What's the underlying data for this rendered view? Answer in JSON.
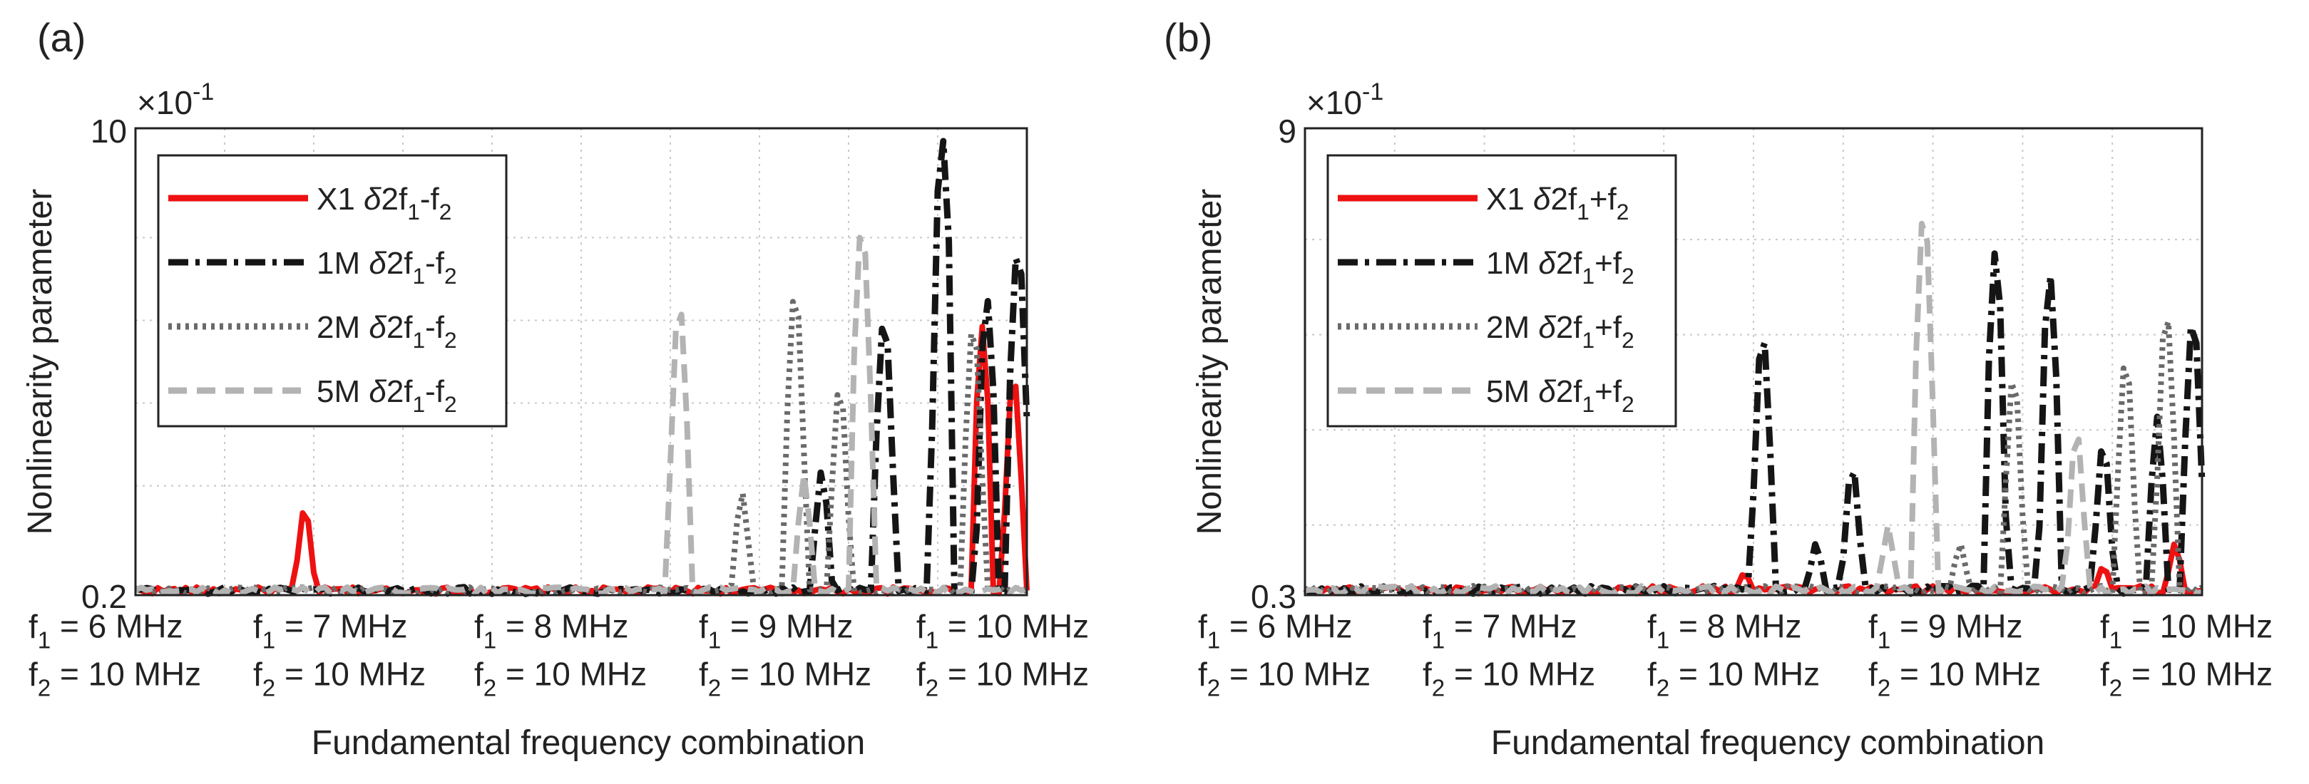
{
  "chart_data": [
    {
      "panel_label": "(a)",
      "type": "line",
      "title": "",
      "ylabel": "Nonlinearity parameter",
      "xlabel": "Fundamental frequency combination",
      "y_exponent_label": "×10",
      "y_exponent_power": "-1",
      "ytick_labels": [
        "10",
        "0.2"
      ],
      "ylim": [
        0.2,
        10
      ],
      "yscale": "log",
      "grid": true,
      "legend_position": "top-left",
      "x_groups": [
        {
          "f1": "= 6 MHz",
          "f2": "= 10 MHz"
        },
        {
          "f1": "= 7 MHz",
          "f2": "= 10 MHz"
        },
        {
          "f1": "= 8 MHz",
          "f2": "= 10 MHz"
        },
        {
          "f1": "= 9 MHz",
          "f2": "= 10 MHz"
        },
        {
          "f1": "= 10 MHz",
          "f2": "= 10 MHz"
        }
      ],
      "series": [
        {
          "name": "X1",
          "label_prefix": "X1",
          "delta": "δ",
          "term": "2f",
          "sub1": "1",
          "op": "-f",
          "sub2": "2",
          "color": "#ee1111",
          "dash": "",
          "peaks": [
            [
              0.19,
              0.45
            ],
            [
              0.95,
              1.9
            ],
            [
              0.985,
              1.4
            ]
          ]
        },
        {
          "name": "1M",
          "label_prefix": "1M",
          "delta": "δ",
          "term": "2f",
          "sub1": "1",
          "op": "-f",
          "sub2": "2",
          "color": "#151515",
          "dash": "28,10,6,10",
          "peaks": [
            [
              0.77,
              0.6
            ],
            [
              0.84,
              2.3
            ],
            [
              0.905,
              10
            ],
            [
              0.955,
              2.6
            ],
            [
              0.99,
              4.2
            ]
          ]
        },
        {
          "name": "2M",
          "label_prefix": "2M",
          "delta": "δ",
          "term": "2f",
          "sub1": "1",
          "op": "-f",
          "sub2": "2",
          "color": "#6a6a6a",
          "dash": "5,7",
          "peaks": [
            [
              0.68,
              0.5
            ],
            [
              0.74,
              2.9
            ],
            [
              0.79,
              1.3
            ],
            [
              0.94,
              2.2
            ]
          ]
        },
        {
          "name": "5M",
          "label_prefix": "5M",
          "delta": "δ",
          "term": "2f",
          "sub1": "1",
          "op": "-f",
          "sub2": "2",
          "color": "#b3b3b3",
          "dash": "26,14",
          "peaks": [
            [
              0.61,
              2.6
            ],
            [
              0.815,
              5.0
            ],
            [
              0.75,
              0.55
            ]
          ]
        }
      ]
    },
    {
      "panel_label": "(b)",
      "type": "line",
      "title": "",
      "ylabel": "Nonlinearity parameter",
      "xlabel": "Fundamental frequency combination",
      "y_exponent_label": "×10",
      "y_exponent_power": "-1",
      "ytick_labels": [
        "9",
        "0.3"
      ],
      "ylim": [
        0.3,
        9
      ],
      "yscale": "log",
      "grid": true,
      "legend_position": "top-left",
      "x_groups": [
        {
          "f1": "= 6 MHz",
          "f2": "= 10 MHz"
        },
        {
          "f1": "= 7 MHz",
          "f2": "= 10 MHz"
        },
        {
          "f1": "= 8 MHz",
          "f2": "= 10 MHz"
        },
        {
          "f1": "= 9 MHz",
          "f2": "= 10 MHz"
        },
        {
          "f1": "= 10 MHz",
          "f2": "= 10 MHz"
        }
      ],
      "series": [
        {
          "name": "X1",
          "label_prefix": "X1",
          "delta": "δ",
          "term": "2f",
          "sub1": "1",
          "op": "+f",
          "sub2": "2",
          "color": "#ee1111",
          "dash": "",
          "peaks": [
            [
              0.49,
              0.36
            ],
            [
              0.89,
              0.38
            ],
            [
              0.97,
              0.45
            ]
          ]
        },
        {
          "name": "1M",
          "label_prefix": "1M",
          "delta": "δ",
          "term": "2f",
          "sub1": "1",
          "op": "+f",
          "sub2": "2",
          "color": "#151515",
          "dash": "28,10,6,10",
          "peaks": [
            [
              0.51,
              2.3
            ],
            [
              0.57,
              0.45
            ],
            [
              0.61,
              0.85
            ],
            [
              0.77,
              4.0
            ],
            [
              0.83,
              3.4
            ],
            [
              0.89,
              1.0
            ],
            [
              0.99,
              2.6
            ],
            [
              0.95,
              1.1
            ]
          ]
        },
        {
          "name": "2M",
          "label_prefix": "2M",
          "delta": "δ",
          "term": "2f",
          "sub1": "1",
          "op": "+f",
          "sub2": "2",
          "color": "#6a6a6a",
          "dash": "5,7",
          "peaks": [
            [
              0.79,
              1.7
            ],
            [
              0.915,
              1.9
            ],
            [
              0.96,
              2.7
            ],
            [
              0.73,
              0.45
            ]
          ]
        },
        {
          "name": "5M",
          "label_prefix": "5M",
          "delta": "δ",
          "term": "2f",
          "sub1": "1",
          "op": "+f",
          "sub2": "2",
          "color": "#b3b3b3",
          "dash": "26,14",
          "peaks": [
            [
              0.69,
              5.6
            ],
            [
              0.65,
              0.5
            ],
            [
              0.86,
              1.1
            ]
          ]
        }
      ]
    }
  ]
}
